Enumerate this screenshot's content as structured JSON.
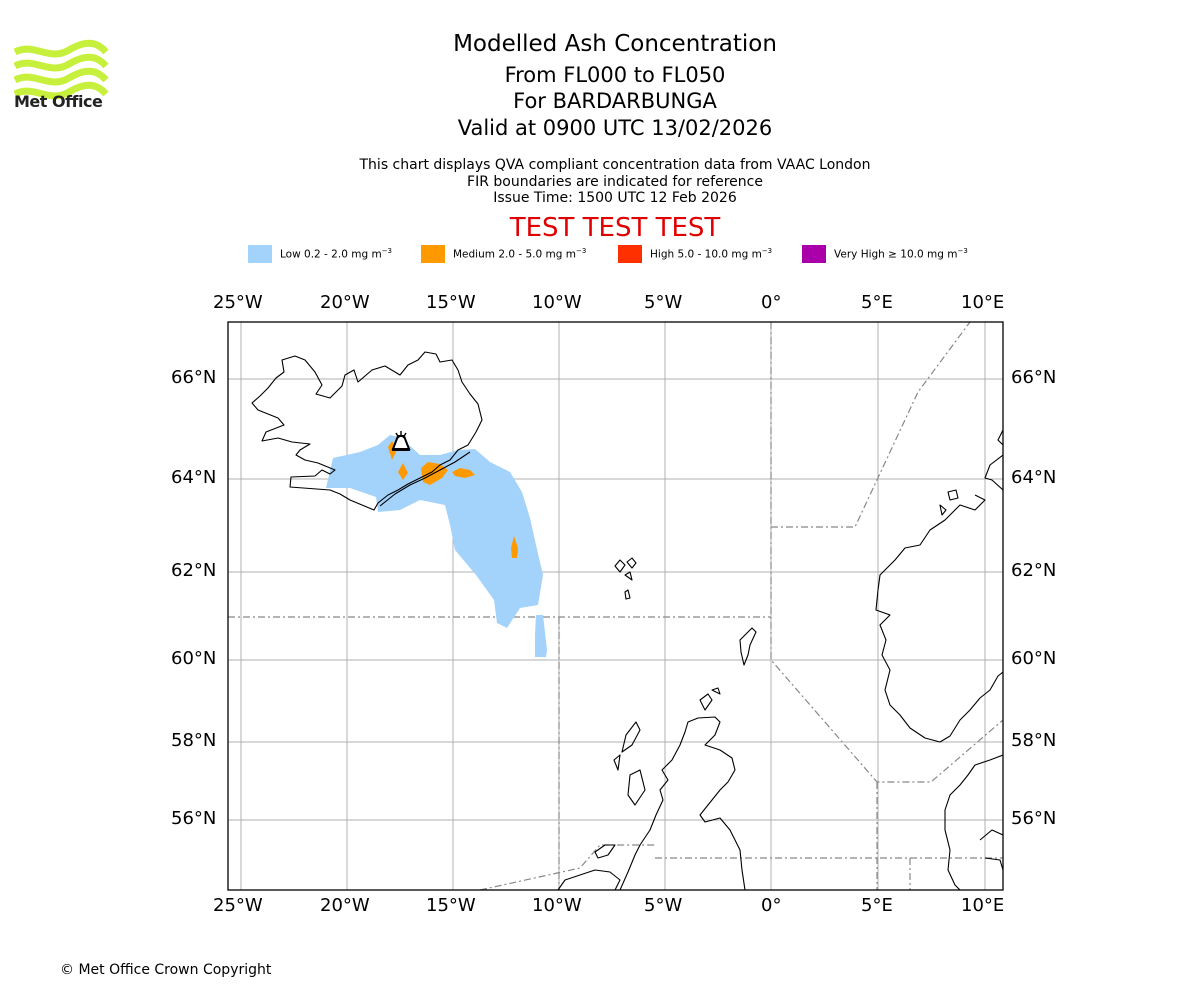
{
  "header": {
    "title": "Modelled Ash Concentration",
    "levels": "From FL000 to FL050",
    "volcano": "For BARDARBUNGA",
    "valid": "Valid at 0900 UTC 13/02/2026",
    "info_line_1": "This chart displays QVA compliant concentration data from VAAC London",
    "info_line_2": "FIR boundaries are indicated for reference",
    "issue_time": "Issue Time: 1500 UTC 12 Feb 2026",
    "test_banner": "TEST TEST TEST"
  },
  "logo": {
    "text": "Met Office",
    "color": "#c6f03c",
    "icon": "met-office-wave-logo"
  },
  "legend": [
    {
      "label": "Low 0.2 - 2.0 mg m",
      "color": "#a3d2fb"
    },
    {
      "label": "Medium 2.0 - 5.0 mg m",
      "color": "#ff9900"
    },
    {
      "label": "High 5.0 - 10.0 mg m",
      "color": "#ff3000"
    },
    {
      "label": "Very High ≥ 10.0 mg m",
      "color": "#aa00aa"
    }
  ],
  "legend_unit_exp": "−3",
  "map": {
    "lon_ticks": [
      "25°W",
      "20°W",
      "15°W",
      "10°W",
      "5°W",
      "0°",
      "5°E",
      "10°E"
    ],
    "lat_ticks": [
      "66°N",
      "64°N",
      "62°N",
      "60°N",
      "58°N",
      "56°N"
    ],
    "volcano_marker_icon": "volcano-icon"
  },
  "footer": {
    "copyright": "© Met Office Crown Copyright"
  }
}
